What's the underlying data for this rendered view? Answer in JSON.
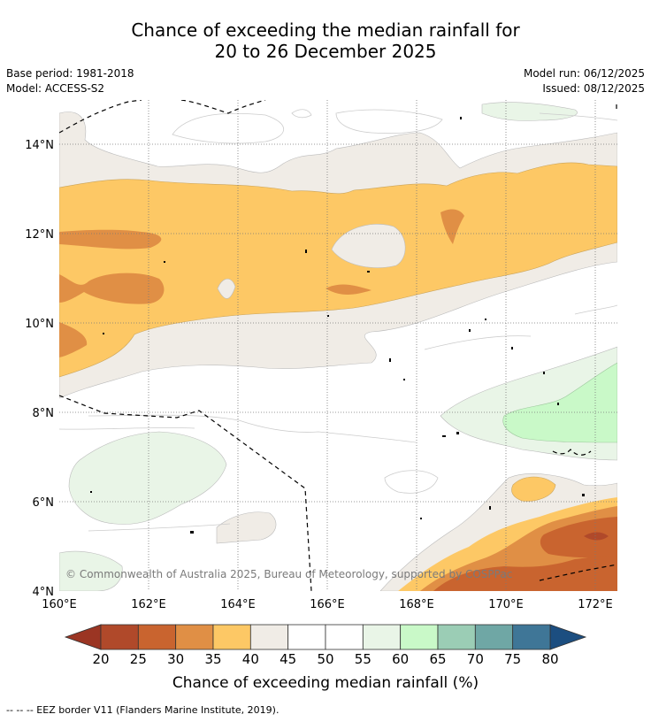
{
  "header": {
    "title_line1": "Chance of exceeding the median rainfall for",
    "title_line2": "20 to 26 December 2025",
    "base_period": "Base period: 1981-2018",
    "model": "Model: ACCESS-S2",
    "model_run": "Model run: 06/12/2025",
    "issued": "Issued: 08/12/2025"
  },
  "map": {
    "lat_labels": [
      "14°N",
      "12°N",
      "10°N",
      "8°N",
      "6°N",
      "4°N"
    ],
    "lon_labels": [
      "160°E",
      "162°E",
      "164°E",
      "166°E",
      "168°E",
      "170°E",
      "172°E"
    ],
    "copyright": "© Commonwealth of Australia 2025, Bureau of Meteorology, supported by COSPPac"
  },
  "colorbar": {
    "ticks": [
      "20",
      "25",
      "30",
      "35",
      "40",
      "45",
      "50",
      "55",
      "60",
      "65",
      "70",
      "75",
      "80"
    ],
    "colors": [
      "#b0492a",
      "#c9642f",
      "#e08f45",
      "#fdc865",
      "#f0ece6",
      "#ffffff",
      "#ffffff",
      "#e9f5e7",
      "#c9f9c8",
      "#9bcdb5",
      "#6fa7a5",
      "#3f7697"
    ],
    "low_end_color": "#9b3523",
    "high_end_color": "#1c4e80",
    "label": "Chance of exceeding median rainfall (%)"
  },
  "footer": {
    "legend": "--  --  -- EEZ border V11 (Flanders Marine Institute, 2019)."
  }
}
